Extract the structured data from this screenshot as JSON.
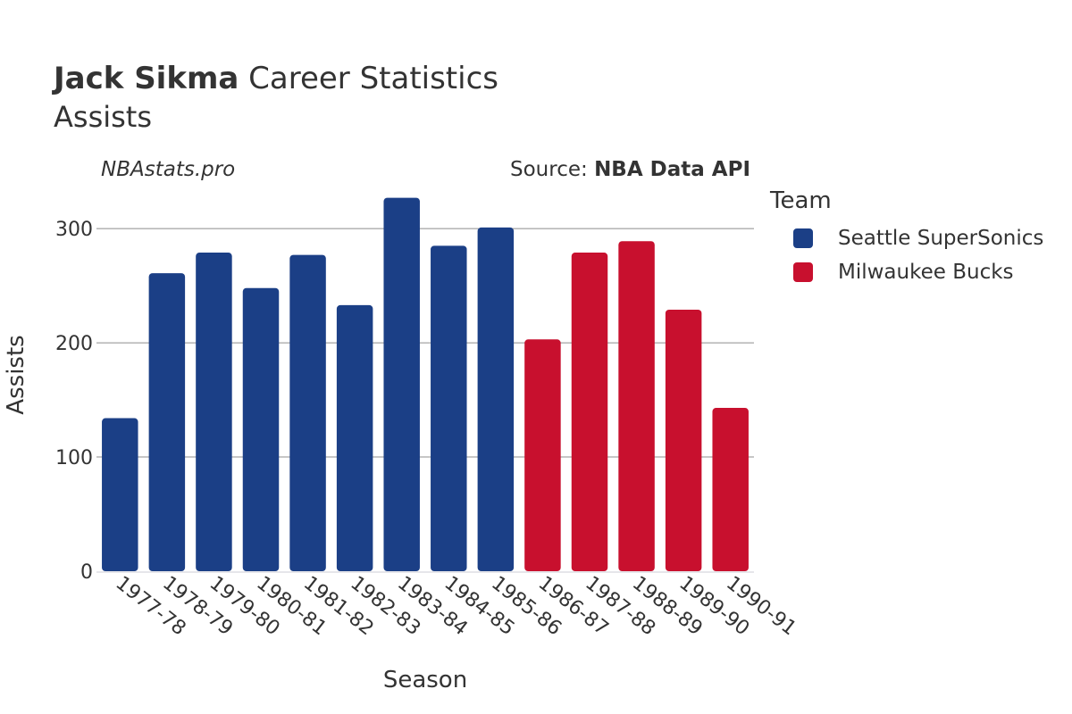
{
  "header": {
    "title_bold": "Jack Sikma",
    "title_rest": " Career Statistics",
    "subtitle": "Assists",
    "watermark": "NBAstats.pro",
    "source_prefix": "Source: ",
    "source_name": "NBA Data API"
  },
  "legend": {
    "title": "Team",
    "items": [
      {
        "label": "Seattle SuperSonics",
        "color": "#1b3f86"
      },
      {
        "label": "Milwaukee Bucks",
        "color": "#c8102e"
      }
    ]
  },
  "chart_data": {
    "type": "bar",
    "xlabel": "Season",
    "ylabel": "Assists",
    "ylim": [
      0,
      340
    ],
    "yticks": [
      0,
      100,
      200,
      300
    ],
    "grid": true,
    "legend_position": "right",
    "categories": [
      "1977-78",
      "1978-79",
      "1979-80",
      "1980-81",
      "1981-82",
      "1982-83",
      "1983-84",
      "1984-85",
      "1985-86",
      "1986-87",
      "1987-88",
      "1988-89",
      "1989-90",
      "1990-91"
    ],
    "values": [
      134,
      261,
      279,
      248,
      277,
      233,
      327,
      285,
      301,
      203,
      279,
      289,
      229,
      143
    ],
    "teams": [
      "Seattle SuperSonics",
      "Seattle SuperSonics",
      "Seattle SuperSonics",
      "Seattle SuperSonics",
      "Seattle SuperSonics",
      "Seattle SuperSonics",
      "Seattle SuperSonics",
      "Seattle SuperSonics",
      "Seattle SuperSonics",
      "Milwaukee Bucks",
      "Milwaukee Bucks",
      "Milwaukee Bucks",
      "Milwaukee Bucks",
      "Milwaukee Bucks"
    ],
    "colors": {
      "Seattle SuperSonics": "#1b3f86",
      "Milwaukee Bucks": "#c8102e"
    }
  }
}
